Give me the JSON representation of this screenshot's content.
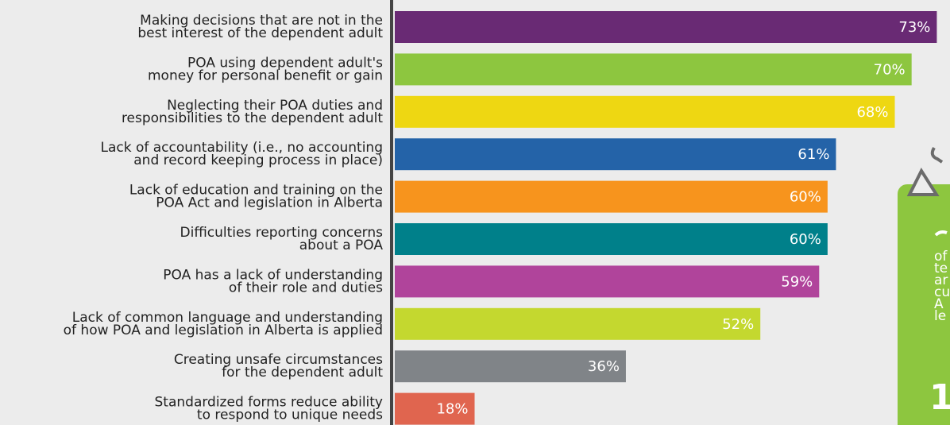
{
  "chart_data": {
    "type": "barh",
    "categories": [
      [
        "Making decisions that are not in the",
        "best interest of the dependent adult"
      ],
      [
        "POA using dependent adult's",
        "money for personal benefit or gain"
      ],
      [
        "Neglecting their POA duties and",
        "responsibilities to the dependent adult"
      ],
      [
        "Lack of accountability (i.e., no accounting",
        "and record keeping process in place)"
      ],
      [
        "Lack of education and training on the",
        "POA Act and legislation in Alberta"
      ],
      [
        "Difficulties reporting concerns",
        "about a POA"
      ],
      [
        "POA has a lack of understanding",
        "of their role and duties"
      ],
      [
        "Lack of common language and understanding",
        "of how POA and legislation in Alberta is applied"
      ],
      [
        "Creating unsafe circumstances",
        "for the dependent adult"
      ],
      [
        "Standardized forms reduce ability",
        "to respond to unique needs"
      ]
    ],
    "values": [
      73,
      70,
      68,
      61,
      60,
      60,
      59,
      52,
      36,
      18
    ],
    "value_labels": [
      "73%",
      "70%",
      "68%",
      "61%",
      "60%",
      "60%",
      "59%",
      "52%",
      "36%",
      "18%"
    ],
    "colors": [
      "#692a74",
      "#8dc63f",
      "#eed712",
      "#2463a8",
      "#f7941d",
      "#00808a",
      "#b0449b",
      "#c4d82f",
      "#808488",
      "#e0654f"
    ],
    "xlim": [
      8.5,
      78
    ],
    "side_panel": {
      "lines": [
        "of",
        "te",
        "ar",
        "cu",
        "A",
        "le"
      ],
      "number": "1"
    }
  }
}
